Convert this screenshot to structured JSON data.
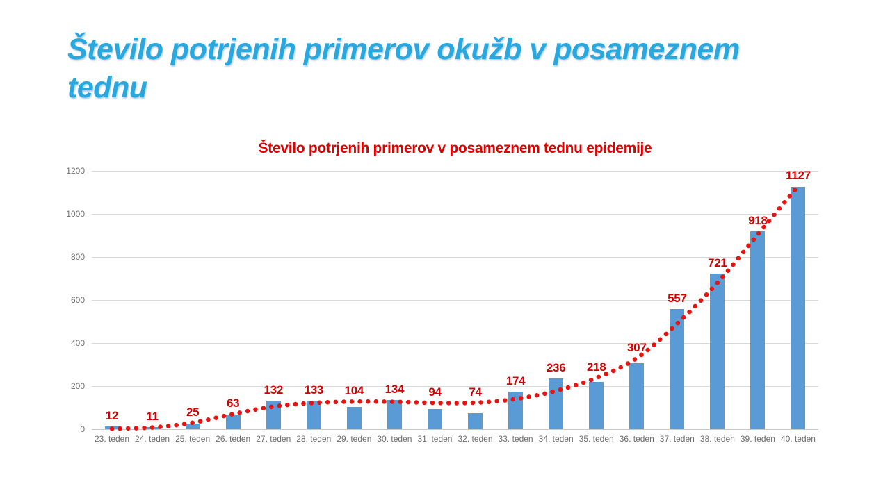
{
  "slide": {
    "title": "Število potrjenih primerov okužb v posameznem tednu",
    "title_color": "#29a8df"
  },
  "chart_data": {
    "type": "bar",
    "title": "Število potrjenih primerov v posameznem tednu epidemije",
    "title_color": "#e00000",
    "categories": [
      "23. teden",
      "24. teden",
      "25. teden",
      "26. teden",
      "27. teden",
      "28. teden",
      "29. teden",
      "30. teden",
      "31. teden",
      "32. teden",
      "33. teden",
      "34. teden",
      "35. teden",
      "36. teden",
      "37. teden",
      "38. teden",
      "39. teden",
      "40. teden"
    ],
    "values": [
      12,
      11,
      25,
      63,
      132,
      133,
      104,
      134,
      94,
      74,
      174,
      236,
      218,
      307,
      557,
      721,
      918,
      1127
    ],
    "bar_color": "#5b9bd5",
    "label_color": "#d40000",
    "xlabel": "",
    "ylabel": "",
    "ylim": [
      0,
      1200
    ],
    "yticks": [
      0,
      200,
      400,
      600,
      800,
      1000,
      1200
    ],
    "grid": true,
    "legend": "none",
    "trendline": {
      "style": "dotted",
      "color": "#e51410",
      "values": [
        2,
        8,
        30,
        70,
        105,
        122,
        128,
        127,
        122,
        123,
        140,
        178,
        238,
        330,
        490,
        680,
        905,
        1130
      ]
    }
  }
}
